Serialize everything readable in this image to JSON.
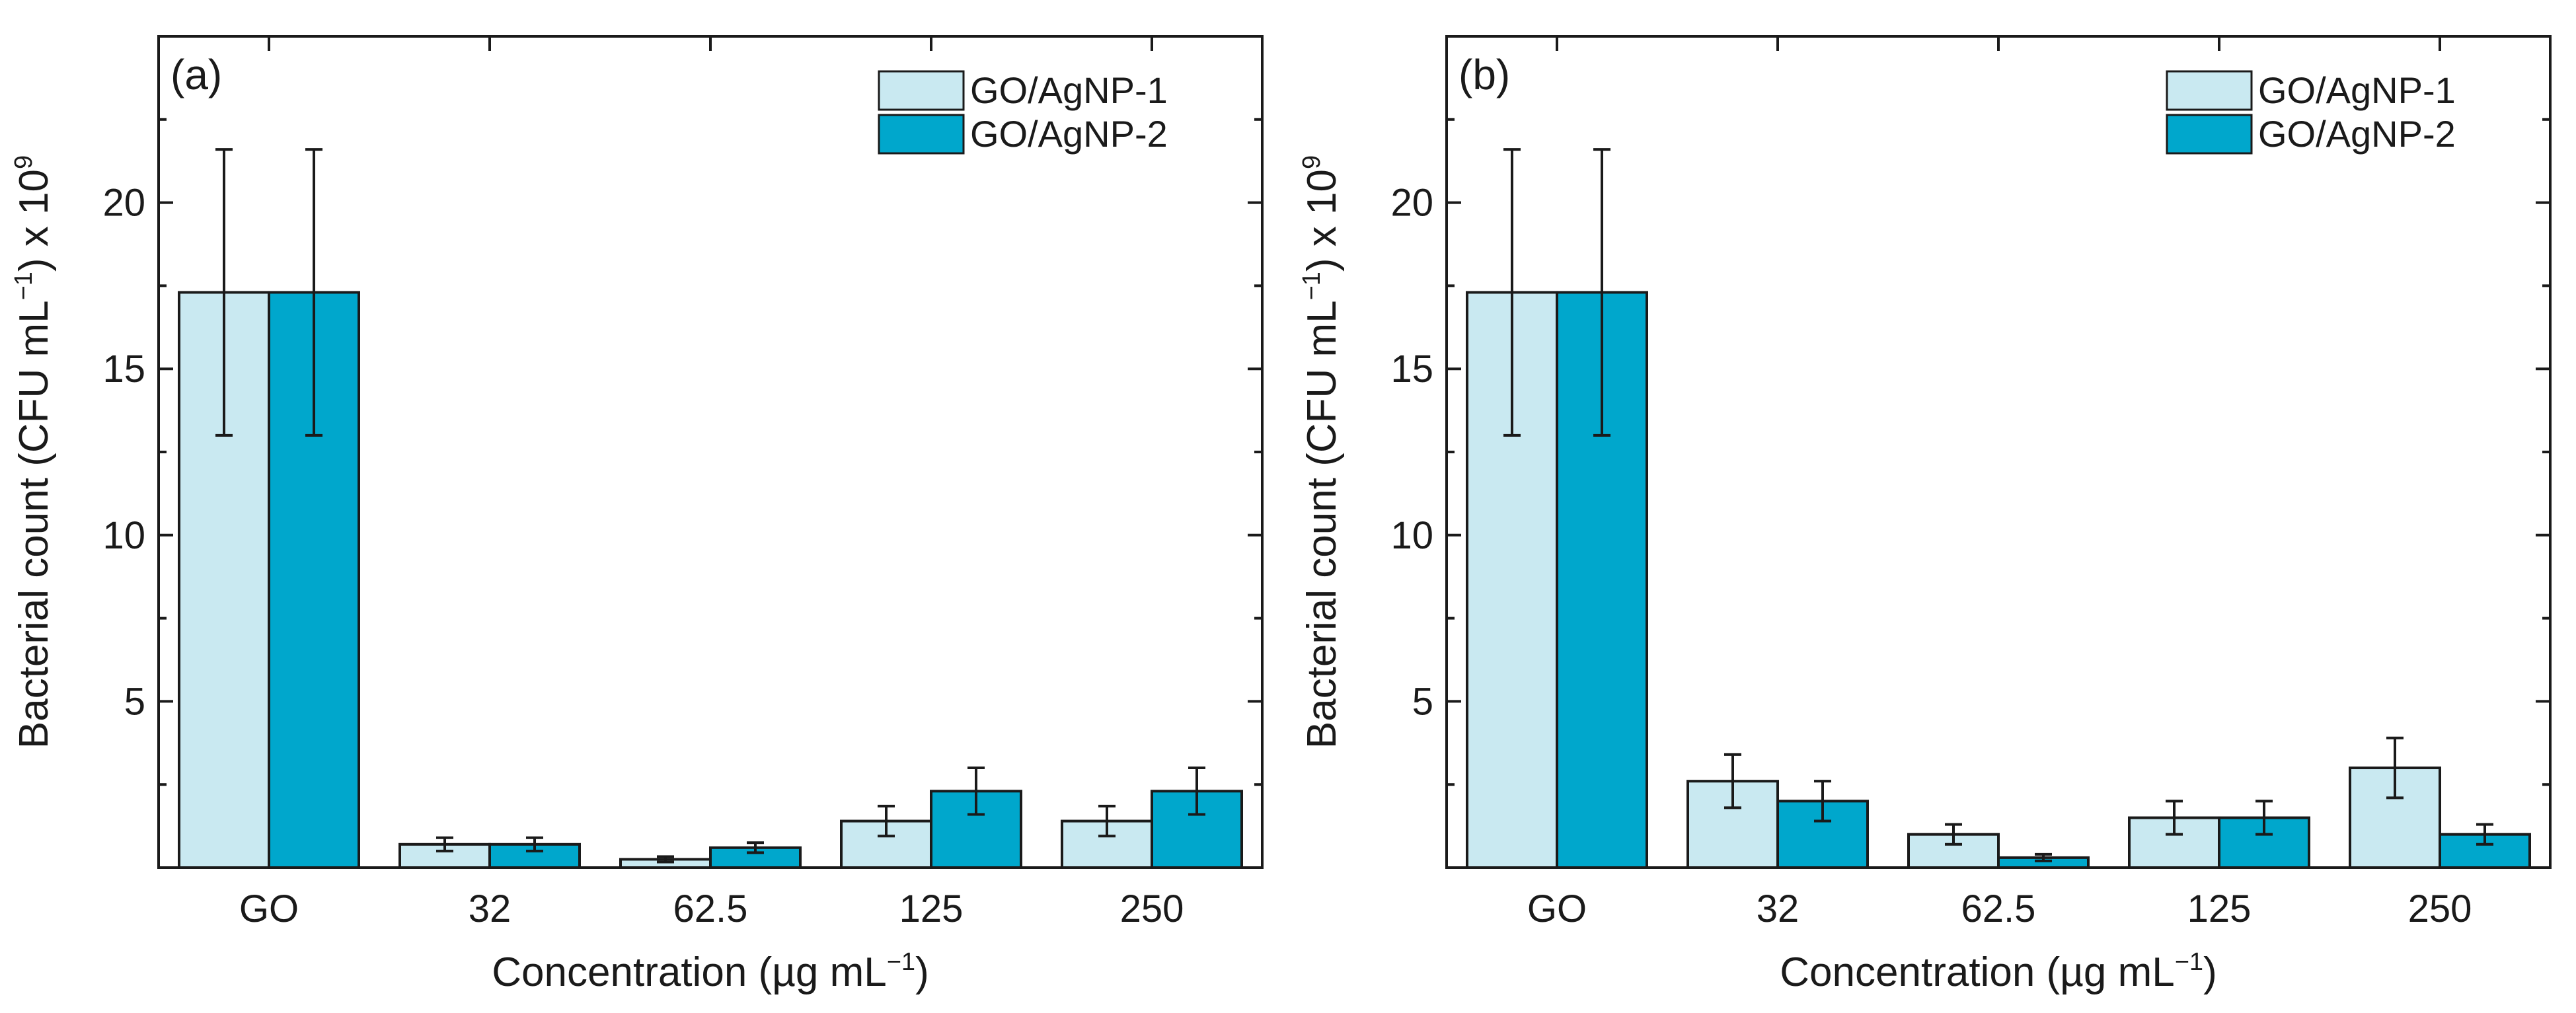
{
  "colors": {
    "series1": "#c9e9f1",
    "series2": "#00a7cc",
    "stroke": "#1a1a1a"
  },
  "chart_data": [
    {
      "type": "bar",
      "panel_label": "(a)",
      "title": "",
      "categories": [
        "GO",
        "32",
        "62.5",
        "125",
        "250"
      ],
      "series": [
        {
          "name": "GO/AgNP-1",
          "values": [
            17.3,
            0.7,
            0.25,
            1.4,
            1.4
          ],
          "errors": [
            4.3,
            0.2,
            0.08,
            0.45,
            0.45
          ]
        },
        {
          "name": "GO/AgNP-2",
          "values": [
            17.3,
            0.7,
            0.6,
            2.3,
            2.3
          ],
          "errors": [
            4.3,
            0.2,
            0.15,
            0.7,
            0.7
          ]
        }
      ],
      "xlabel": "Concentration (µg mL",
      "xlabel_sup": "−1",
      "xlabel_end": ")",
      "ylabel": "Bacterial count (CFU mL",
      "ylabel_sup": "−1",
      "ylabel_mid": ") x 10",
      "ylabel_sup2": "9",
      "yticks": [
        5,
        10,
        15,
        20
      ],
      "ylim": [
        0,
        25
      ],
      "legend_position": "top-right",
      "grid": false
    },
    {
      "type": "bar",
      "panel_label": "(b)",
      "title": "",
      "categories": [
        "GO",
        "32",
        "62.5",
        "125",
        "250"
      ],
      "series": [
        {
          "name": "GO/AgNP-1",
          "values": [
            17.3,
            2.6,
            1.0,
            1.5,
            3.0
          ],
          "errors": [
            4.3,
            0.8,
            0.3,
            0.5,
            0.9
          ]
        },
        {
          "name": "GO/AgNP-2",
          "values": [
            17.3,
            2.0,
            0.3,
            1.5,
            1.0
          ],
          "errors": [
            4.3,
            0.6,
            0.1,
            0.5,
            0.3
          ]
        }
      ],
      "xlabel": "Concentration (µg mL",
      "xlabel_sup": "−1",
      "xlabel_end": ")",
      "ylabel": "Bacterial count (CFU mL",
      "ylabel_sup": "−1",
      "ylabel_mid": ") x 10",
      "ylabel_sup2": "9",
      "yticks": [
        5,
        10,
        15,
        20
      ],
      "ylim": [
        0,
        25
      ],
      "legend_position": "top-right",
      "grid": false
    }
  ]
}
